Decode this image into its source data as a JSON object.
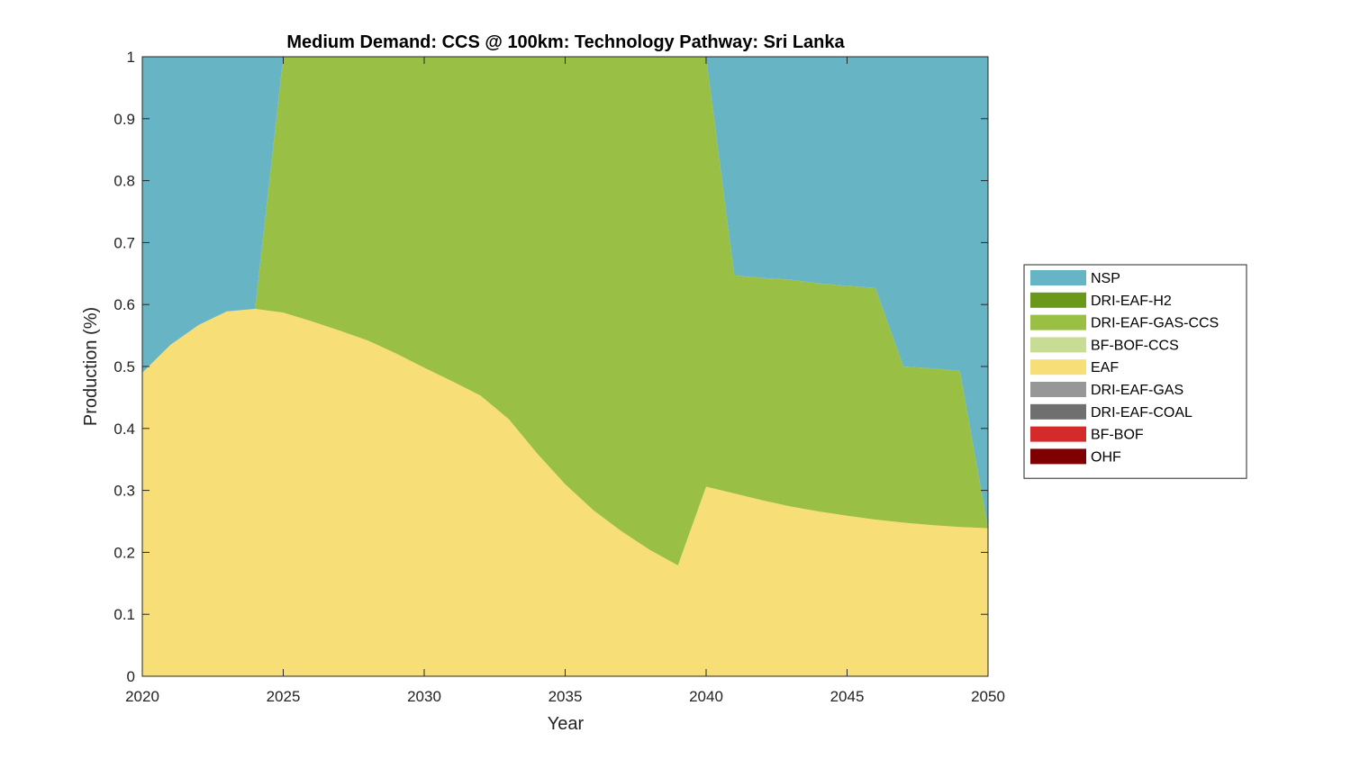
{
  "chart_data": {
    "type": "area",
    "title": "Medium Demand: CCS @ 100km: Technology Pathway: Sri Lanka",
    "xlabel": "Year",
    "ylabel": "Production (%)",
    "xlim": [
      2020,
      2050
    ],
    "ylim": [
      0,
      1
    ],
    "xticks": [
      "2020",
      "2025",
      "2030",
      "2035",
      "2040",
      "2045",
      "2050"
    ],
    "yticks": [
      "0",
      "0.1",
      "0.2",
      "0.3",
      "0.4",
      "0.5",
      "0.6",
      "0.7",
      "0.8",
      "0.9",
      "1"
    ],
    "legend_position": "right",
    "x": [
      2020,
      2021,
      2022,
      2023,
      2024,
      2025,
      2026,
      2027,
      2028,
      2029,
      2030,
      2031,
      2032,
      2033,
      2034,
      2035,
      2036,
      2037,
      2038,
      2039,
      2040,
      2041,
      2042,
      2043,
      2044,
      2045,
      2046,
      2047,
      2048,
      2049,
      2050
    ],
    "series": [
      {
        "name": "OHF",
        "color": "#7f0000",
        "values": [
          0,
          0,
          0,
          0,
          0,
          0,
          0,
          0,
          0,
          0,
          0,
          0,
          0,
          0,
          0,
          0,
          0,
          0,
          0,
          0,
          0,
          0,
          0,
          0,
          0,
          0,
          0,
          0,
          0,
          0,
          0
        ]
      },
      {
        "name": "BF-BOF",
        "color": "#d42a2a",
        "values": [
          0,
          0,
          0,
          0,
          0,
          0,
          0,
          0,
          0,
          0,
          0,
          0,
          0,
          0,
          0,
          0,
          0,
          0,
          0,
          0,
          0,
          0,
          0,
          0,
          0,
          0,
          0,
          0,
          0,
          0,
          0
        ]
      },
      {
        "name": "DRI-EAF-COAL",
        "color": "#6f6f6f",
        "values": [
          0,
          0,
          0,
          0,
          0,
          0,
          0,
          0,
          0,
          0,
          0,
          0,
          0,
          0,
          0,
          0,
          0,
          0,
          0,
          0,
          0,
          0,
          0,
          0,
          0,
          0,
          0,
          0,
          0,
          0,
          0
        ]
      },
      {
        "name": "DRI-EAF-GAS",
        "color": "#979797",
        "values": [
          0,
          0,
          0,
          0,
          0,
          0,
          0,
          0,
          0,
          0,
          0,
          0,
          0,
          0,
          0,
          0,
          0,
          0,
          0,
          0,
          0,
          0,
          0,
          0,
          0,
          0,
          0,
          0,
          0,
          0,
          0
        ]
      },
      {
        "name": "EAF",
        "color": "#f7de76",
        "values": [
          0.49,
          0.535,
          0.567,
          0.589,
          0.593,
          0.587,
          0.573,
          0.558,
          0.542,
          0.521,
          0.498,
          0.476,
          0.453,
          0.415,
          0.36,
          0.31,
          0.268,
          0.234,
          0.204,
          0.179,
          0.306,
          0.295,
          0.284,
          0.274,
          0.266,
          0.259,
          0.253,
          0.248,
          0.244,
          0.241,
          0.239
        ]
      },
      {
        "name": "BF-BOF-CCS",
        "color": "#c8dc96",
        "values": [
          0,
          0,
          0,
          0,
          0,
          0,
          0,
          0,
          0,
          0,
          0,
          0,
          0,
          0,
          0,
          0,
          0,
          0,
          0,
          0,
          0,
          0,
          0,
          0,
          0,
          0,
          0,
          0,
          0,
          0,
          0
        ]
      },
      {
        "name": "DRI-EAF-GAS-CCS",
        "color": "#99c045",
        "values": [
          0,
          0,
          0,
          0,
          0,
          0.413,
          0.427,
          0.442,
          0.458,
          0.479,
          0.502,
          0.524,
          0.547,
          0.585,
          0.64,
          0.69,
          0.732,
          0.766,
          0.796,
          0.821,
          0.694,
          0.352,
          0.359,
          0.366,
          0.368,
          0.371,
          0.374,
          0.252,
          0.253,
          0.252,
          0
        ]
      },
      {
        "name": "DRI-EAF-H2",
        "color": "#6a9818",
        "values": [
          0,
          0,
          0,
          0,
          0,
          0,
          0,
          0,
          0,
          0,
          0,
          0,
          0,
          0,
          0,
          0,
          0,
          0,
          0,
          0,
          0,
          0,
          0,
          0,
          0,
          0,
          0,
          0,
          0,
          0,
          0
        ]
      },
      {
        "name": "NSP",
        "color": "#67b4c4",
        "values": [
          0.51,
          0.465,
          0.433,
          0.411,
          0.407,
          0,
          0,
          0,
          0,
          0,
          0,
          0,
          0,
          0,
          0,
          0,
          0,
          0,
          0,
          0,
          0,
          0.353,
          0.357,
          0.36,
          0.366,
          0.37,
          0.373,
          0.5,
          0.503,
          0.507,
          0.761
        ]
      }
    ],
    "legend": [
      "NSP",
      "DRI-EAF-H2",
      "DRI-EAF-GAS-CCS",
      "BF-BOF-CCS",
      "EAF",
      "DRI-EAF-GAS",
      "DRI-EAF-COAL",
      "BF-BOF",
      "OHF"
    ]
  }
}
